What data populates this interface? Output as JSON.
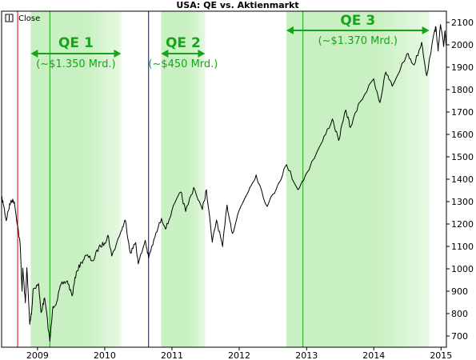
{
  "chart_data": {
    "type": "line",
    "title": "USA: QE vs. Aktienmarkt",
    "legend": {
      "label": "Close",
      "placement": "top-left"
    },
    "y_ticks": [
      "700",
      "800",
      "900",
      "1000",
      "1100",
      "1200",
      "1300",
      "1400",
      "1500",
      "1600",
      "1700",
      "1800",
      "1900",
      "2000",
      "2100"
    ],
    "x_ticks": [
      {
        "label": "2009",
        "value": "2009-01-01"
      },
      {
        "label": "2010",
        "value": "2010-01-01"
      },
      {
        "label": "2011",
        "value": "2011-01-01"
      },
      {
        "label": "2012",
        "value": "2012-01-01"
      },
      {
        "label": "2013",
        "value": "2013-01-01"
      },
      {
        "label": "2014",
        "value": "2014-01-01"
      },
      {
        "label": "2015",
        "value": "2015-01-01"
      }
    ],
    "x_range": [
      "2008-06-20",
      "2015-01-30"
    ],
    "y_range": [
      650,
      2150
    ],
    "grid": false,
    "colors": {
      "line": "#000000",
      "qe_band": "#c9f0c2",
      "qe_text": "#1aa31a",
      "red_marker": "#e00000",
      "blue_marker": "#0000cc"
    },
    "qe_periods": [
      {
        "label": "QE 1",
        "amount": "(~$1.350 Mrd.)",
        "start": "2008-11-25",
        "end": "2010-03-31"
      },
      {
        "label": "QE 2",
        "amount": "(~$450 Mrd.)",
        "start": "2010-11-03",
        "end": "2011-06-30"
      },
      {
        "label": "QE 3",
        "amount": "(~$1.370 Mrd.)",
        "start": "2012-09-13",
        "end": "2014-10-29"
      }
    ],
    "markers": [
      {
        "type": "vertical",
        "color": "red",
        "date": "2008-09-15"
      },
      {
        "type": "vertical",
        "color": "green",
        "date": "2009-03-09"
      },
      {
        "type": "vertical",
        "color": "blue",
        "date": "2010-08-27"
      },
      {
        "type": "vertical",
        "color": "green",
        "date": "2012-12-12"
      }
    ],
    "series": [
      {
        "values": [
          [
            "2008-06-20",
            1317
          ],
          [
            "2008-07-01",
            1285
          ],
          [
            "2008-07-15",
            1215
          ],
          [
            "2008-07-25",
            1257
          ],
          [
            "2008-08-11",
            1306
          ],
          [
            "2008-08-28",
            1300
          ],
          [
            "2008-09-15",
            1192
          ],
          [
            "2008-09-29",
            1106
          ],
          [
            "2008-10-09",
            900
          ],
          [
            "2008-10-13",
            1003
          ],
          [
            "2008-10-27",
            848
          ],
          [
            "2008-11-04",
            1005
          ],
          [
            "2008-11-20",
            752
          ],
          [
            "2008-12-01",
            816
          ],
          [
            "2008-12-08",
            909
          ],
          [
            "2009-01-06",
            934
          ],
          [
            "2009-01-20",
            805
          ],
          [
            "2009-02-09",
            869
          ],
          [
            "2009-03-09",
            677
          ],
          [
            "2009-03-26",
            832
          ],
          [
            "2009-04-15",
            852
          ],
          [
            "2009-05-08",
            929
          ],
          [
            "2009-06-12",
            946
          ],
          [
            "2009-07-08",
            879
          ],
          [
            "2009-07-31",
            987
          ],
          [
            "2009-08-28",
            1029
          ],
          [
            "2009-09-23",
            1060
          ],
          [
            "2009-10-30",
            1036
          ],
          [
            "2009-11-30",
            1096
          ],
          [
            "2009-12-31",
            1115
          ],
          [
            "2010-01-19",
            1150
          ],
          [
            "2010-02-08",
            1057
          ],
          [
            "2010-03-31",
            1169
          ],
          [
            "2010-04-23",
            1217
          ],
          [
            "2010-05-20",
            1071
          ],
          [
            "2010-06-18",
            1117
          ],
          [
            "2010-07-02",
            1022
          ],
          [
            "2010-08-09",
            1127
          ],
          [
            "2010-08-27",
            1048
          ],
          [
            "2010-09-30",
            1141
          ],
          [
            "2010-11-05",
            1225
          ],
          [
            "2010-11-30",
            1180
          ],
          [
            "2010-12-31",
            1258
          ],
          [
            "2011-02-18",
            1343
          ],
          [
            "2011-03-16",
            1256
          ],
          [
            "2011-04-29",
            1363
          ],
          [
            "2011-06-15",
            1265
          ],
          [
            "2011-07-07",
            1353
          ],
          [
            "2011-08-08",
            1119
          ],
          [
            "2011-08-31",
            1218
          ],
          [
            "2011-10-03",
            1099
          ],
          [
            "2011-10-27",
            1285
          ],
          [
            "2011-11-25",
            1158
          ],
          [
            "2011-12-30",
            1257
          ],
          [
            "2012-02-29",
            1365
          ],
          [
            "2012-04-02",
            1419
          ],
          [
            "2012-06-01",
            1278
          ],
          [
            "2012-07-31",
            1379
          ],
          [
            "2012-09-14",
            1465
          ],
          [
            "2012-11-15",
            1353
          ],
          [
            "2012-12-31",
            1426
          ],
          [
            "2013-03-28",
            1569
          ],
          [
            "2013-05-21",
            1669
          ],
          [
            "2013-06-24",
            1573
          ],
          [
            "2013-08-02",
            1709
          ],
          [
            "2013-08-27",
            1631
          ],
          [
            "2013-10-18",
            1745
          ],
          [
            "2013-12-31",
            1848
          ],
          [
            "2014-02-03",
            1742
          ],
          [
            "2014-03-07",
            1878
          ],
          [
            "2014-04-11",
            1815
          ],
          [
            "2014-06-30",
            1960
          ],
          [
            "2014-08-07",
            1910
          ],
          [
            "2014-09-18",
            2011
          ],
          [
            "2014-10-15",
            1862
          ],
          [
            "2014-11-28",
            2067
          ],
          [
            "2014-12-05",
            2075
          ],
          [
            "2014-12-16",
            1972
          ],
          [
            "2014-12-29",
            2090
          ],
          [
            "2015-01-15",
            1992
          ],
          [
            "2015-01-22",
            2063
          ],
          [
            "2015-01-30",
            1995
          ]
        ]
      }
    ]
  }
}
